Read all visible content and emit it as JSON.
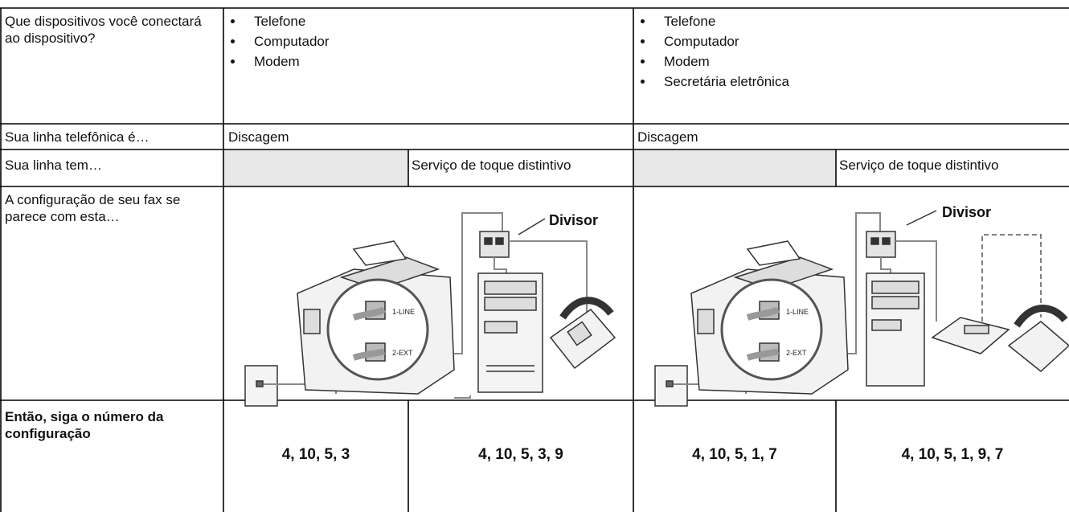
{
  "table": {
    "rows": [
      {
        "label": "Que dispositivos você conectará ao dispositivo?",
        "cells": [
          {
            "items": [
              "Telefone",
              "Computador",
              "Modem"
            ]
          },
          {
            "items": [
              "Telefone",
              "Computador",
              "Modem",
              "Secretária eletrônica"
            ]
          }
        ]
      },
      {
        "label": "Sua linha telefônica é…",
        "cells": [
          "Discagem",
          "Discagem"
        ]
      },
      {
        "label": "Sua linha tem…",
        "cells": [
          "Serviço de toque distintivo",
          "Serviço de toque distintivo"
        ]
      },
      {
        "label": "A configuração de seu fax se parece com esta…",
        "diagrams": [
          {
            "splitter": "Divisor",
            "port1": "1-LINE",
            "port2": "2-EXT"
          },
          {
            "splitter": "Divisor",
            "port1": "1-LINE",
            "port2": "2-EXT"
          }
        ]
      },
      {
        "label": "Então, siga o número da configuração",
        "cells": [
          "4, 10, 5, 3",
          "4, 10, 5, 3, 9",
          "4, 10, 5, 1, 7",
          "4, 10, 5, 1, 9, 7"
        ]
      }
    ]
  }
}
